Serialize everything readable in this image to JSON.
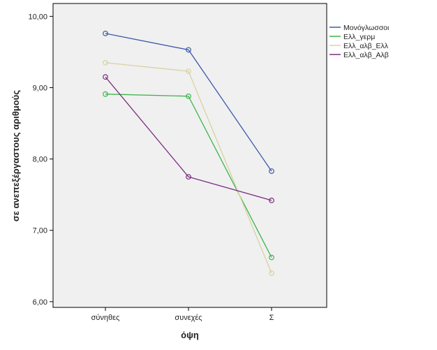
{
  "chart_data": {
    "type": "line",
    "xlabel": "όψη",
    "ylabel": "σε ανεπεξέργαστους αριθμούς",
    "categories": [
      "σύνηθες",
      "συνεχές",
      "Σ"
    ],
    "yticks": [
      "6,00",
      "7,00",
      "8,00",
      "9,00",
      "10,00"
    ],
    "ylim": [
      5.92,
      10.18
    ],
    "grid": false,
    "legend_position": "right",
    "plot_background": "#f0f0f0",
    "series": [
      {
        "name": "Μονόγλωσσοι",
        "color": "#3a5aa8",
        "values": [
          9.76,
          9.53,
          7.83
        ]
      },
      {
        "name": "Ελλ_γερμ",
        "color": "#3cb44b",
        "values": [
          8.91,
          8.88,
          6.62
        ]
      },
      {
        "name": "Ελλ_αλβ_Ελλ",
        "color": "#d8d2a2",
        "values": [
          9.35,
          9.23,
          6.4
        ]
      },
      {
        "name": "Ελλ_αλβ_Αλβ",
        "color": "#7b2d82",
        "values": [
          9.15,
          7.75,
          7.42
        ]
      }
    ]
  }
}
